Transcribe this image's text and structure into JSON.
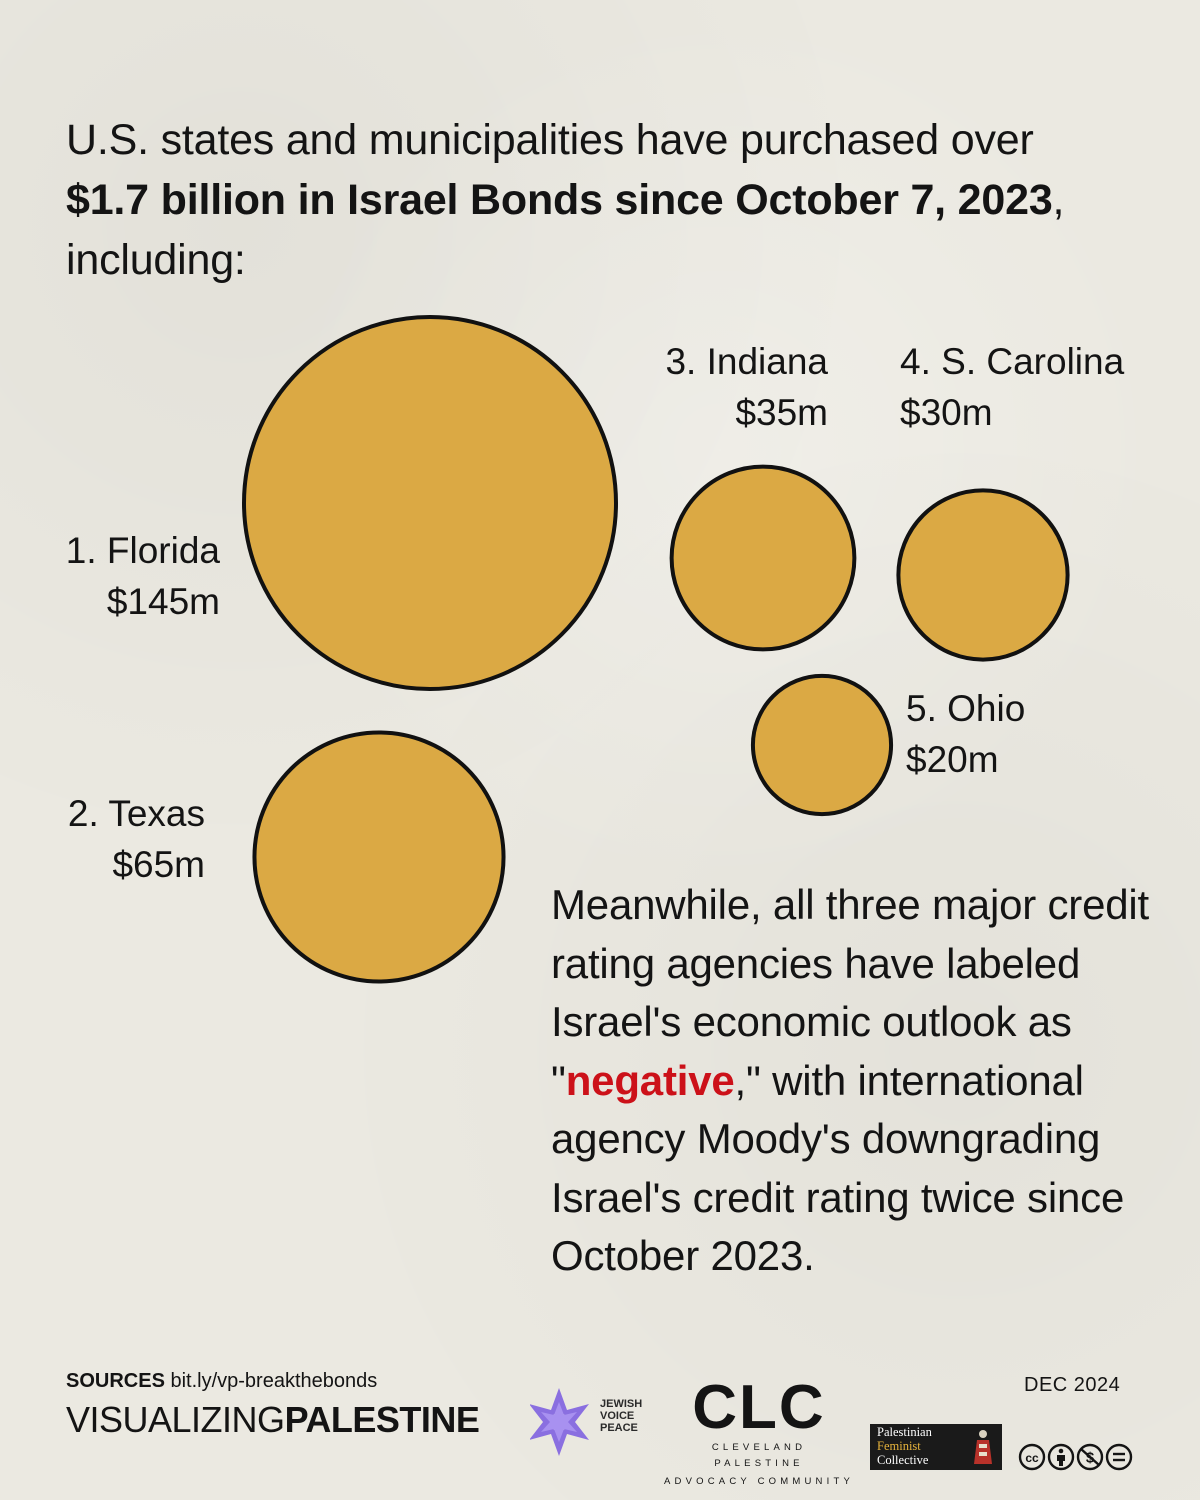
{
  "headline": {
    "part1": "U.S. states and municipalities have purchased over ",
    "bold1": "$1.7 billion in Israel Bonds since October 7, 2023",
    "part2": ", including:"
  },
  "chart_data": {
    "type": "bubble",
    "title": "U.S. state purchases of Israel Bonds since October 7, 2023",
    "unit": "$m",
    "fill_color": "#dba944",
    "series": [
      {
        "rank": 1,
        "state": "Florida",
        "rank_label": "1. Florida",
        "amount_label": "$145m",
        "value": 145
      },
      {
        "rank": 2,
        "state": "Texas",
        "rank_label": "2. Texas",
        "amount_label": "$65m",
        "value": 65
      },
      {
        "rank": 3,
        "state": "Indiana",
        "rank_label": "3. Indiana",
        "amount_label": "$35m",
        "value": 35
      },
      {
        "rank": 4,
        "state": "S. Carolina",
        "rank_label": "4. S. Carolina",
        "amount_label": "$30m",
        "value": 30
      },
      {
        "rank": 5,
        "state": "Ohio",
        "rank_label": "5. Ohio",
        "amount_label": "$20m",
        "value": 20
      }
    ]
  },
  "body": {
    "part1": "Meanwhile, all three major credit rating agencies have labeled Israel's economic outlook as \"",
    "highlight": "negative",
    "part2": ",\" with international agency Moody's downgrading Israel's credit rating twice since October 2023."
  },
  "footer": {
    "sources_label": "SOURCES",
    "sources_url": "bit.ly/vp-breakthebonds",
    "brand_light": "VISUALIZING",
    "brand_bold": "PALESTINE",
    "jvp_text": "JEWISH\nVOICE\nPEACE",
    "clc_mark": "CLC",
    "clc_sub1": "CLEVELAND PALESTINE",
    "clc_sub2": "ADVOCACY COMMUNITY",
    "pfc_line1": "Palestinian",
    "pfc_line2": "Feminist",
    "pfc_line3": "Collective",
    "date": "DEC 2024",
    "license_icons": [
      "cc-icon",
      "by-icon",
      "nc-icon",
      "nd-icon"
    ]
  },
  "colors": {
    "background": "#ebe9e1",
    "bubble": "#dba944",
    "highlight": "#cc1119",
    "text": "#141414"
  }
}
